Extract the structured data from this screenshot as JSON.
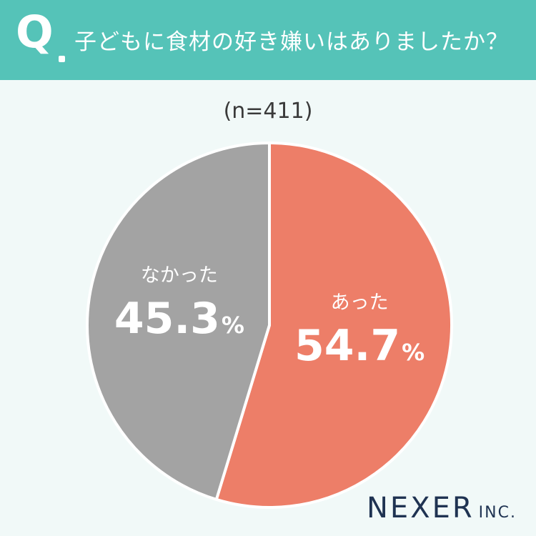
{
  "header": {
    "question_mark": "Q",
    "question": "子どもに食材の好き嫌いはありましたか？"
  },
  "sample_size": "(n=411)",
  "chart_data": {
    "type": "pie",
    "slices": [
      {
        "label": "あった",
        "value": 54.7,
        "display": "54.7",
        "unit": "%",
        "color": "#ed7e68"
      },
      {
        "label": "なかった",
        "value": 45.3,
        "display": "45.3",
        "unit": "%",
        "color": "#a3a3a3"
      }
    ],
    "start": "12 o'clock",
    "direction": "clockwise"
  },
  "brand": {
    "name": "NEXER",
    "suffix": "INC."
  },
  "colors": {
    "header": "#55c3b8",
    "background": "#f1f9f8",
    "brand": "#1f3352"
  }
}
